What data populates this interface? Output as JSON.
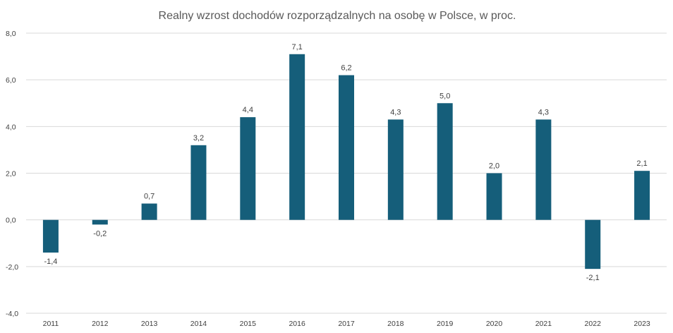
{
  "chart_data": {
    "type": "bar",
    "title": "Realny wzrost dochodów rozporządzalnych na osobę w Polsce, w proc.",
    "xlabel": "",
    "ylabel": "",
    "ylim": [
      -4,
      8
    ],
    "yticks": [
      -4,
      -2,
      0,
      2,
      4,
      6,
      8
    ],
    "ytick_labels": [
      "-4,0",
      "-2,0",
      "0,0",
      "2,0",
      "4,0",
      "6,0",
      "8,0"
    ],
    "grid": true,
    "categories": [
      "2011",
      "2012",
      "2013",
      "2014",
      "2015",
      "2016",
      "2017",
      "2018",
      "2019",
      "2020",
      "2021",
      "2022",
      "2023"
    ],
    "values": [
      -1.4,
      -0.2,
      0.7,
      3.2,
      4.4,
      7.1,
      6.2,
      4.3,
      5.0,
      2.0,
      4.3,
      -2.1,
      2.1
    ],
    "data_labels": [
      "-1,4",
      "-0,2",
      "0,7",
      "3,2",
      "4,4",
      "7,1",
      "6,2",
      "4,3",
      "5,0",
      "2,0",
      "4,3",
      "-2,1",
      "2,1"
    ],
    "bar_color": "#155e7a"
  }
}
